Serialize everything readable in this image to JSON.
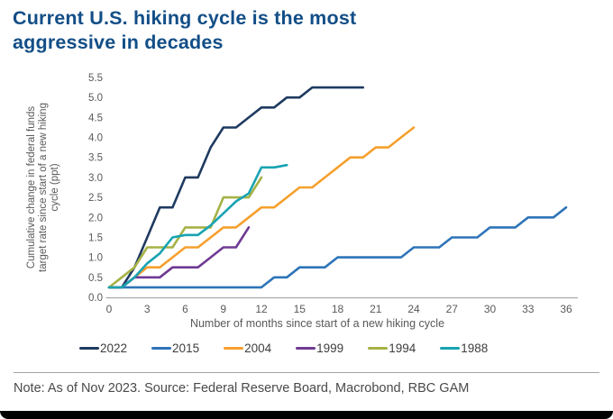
{
  "title": {
    "line1": "Current U.S. hiking cycle is the most",
    "line2": "aggressive in decades",
    "full": "Current U.S. hiking cycle is the most aggressive in decades",
    "color": "#124e87"
  },
  "note": {
    "text": "Note: As of Nov 2023. Source: Federal Reserve Board, Macrobond, RBC GAM"
  },
  "styles": {
    "axis_line": "#a9a9a9",
    "tick_text": "#595959",
    "axis_title_text": "#595959",
    "legend_text": "#3d3d3d",
    "note_text": "#4a4a4a"
  },
  "chart_data": {
    "type": "line",
    "title": "Current U.S. hiking cycle is the most aggressive in decades",
    "xlabel": "Number of months since start of a new hiking cycle",
    "ylabel": "Cumulative change in federal funds target rate since start of a new hiking cycle (ppt)",
    "ylabel_lines": [
      "Cumulative change in federal funds",
      "target rate since start of a new hiking",
      "cycle (ppt)"
    ],
    "xlim": [
      0,
      36
    ],
    "ylim": [
      0,
      5.5
    ],
    "x_ticks": [
      0,
      3,
      6,
      9,
      12,
      15,
      18,
      21,
      24,
      27,
      30,
      33,
      36
    ],
    "y_ticks": [
      0,
      0.5,
      1,
      1.5,
      2,
      2.5,
      3,
      3.5,
      4,
      4.5,
      5,
      5.5
    ],
    "grid": false,
    "legend_position": "bottom",
    "x_unit": "months since start of hiking cycle, monthly values",
    "series": [
      {
        "name": "2022",
        "color": "#1f3a60",
        "x_start": 0,
        "x_step": 1,
        "values": [
          0.25,
          0.25,
          0.75,
          1.5,
          2.25,
          2.25,
          3.0,
          3.0,
          3.75,
          4.25,
          4.25,
          4.5,
          4.75,
          4.75,
          5.0,
          5.0,
          5.25,
          5.25,
          5.25,
          5.25,
          5.25
        ]
      },
      {
        "name": "2015",
        "color": "#2e74b8",
        "x_start": 0,
        "x_step": 1,
        "values": [
          0.25,
          0.25,
          0.25,
          0.25,
          0.25,
          0.25,
          0.25,
          0.25,
          0.25,
          0.25,
          0.25,
          0.25,
          0.25,
          0.5,
          0.5,
          0.75,
          0.75,
          0.75,
          1.0,
          1.0,
          1.0,
          1.0,
          1.0,
          1.0,
          1.25,
          1.25,
          1.25,
          1.5,
          1.5,
          1.5,
          1.75,
          1.75,
          1.75,
          2.0,
          2.0,
          2.0,
          2.25
        ]
      },
      {
        "name": "2004",
        "color": "#f6a02d",
        "x_start": 0,
        "x_step": 1,
        "values": [
          0.25,
          0.25,
          0.5,
          0.75,
          0.75,
          1.0,
          1.25,
          1.25,
          1.5,
          1.75,
          1.75,
          2.0,
          2.25,
          2.25,
          2.5,
          2.75,
          2.75,
          3.0,
          3.25,
          3.5,
          3.5,
          3.75,
          3.75,
          4.0,
          4.25
        ]
      },
      {
        "name": "1999",
        "color": "#6f3a94",
        "x_start": 0,
        "x_step": 1,
        "values": [
          0.25,
          0.25,
          0.5,
          0.5,
          0.5,
          0.75,
          0.75,
          0.75,
          1.0,
          1.25,
          1.25,
          1.75
        ]
      },
      {
        "name": "1994",
        "color": "#a6b246",
        "x_start": 0,
        "x_step": 1,
        "values": [
          0.25,
          0.5,
          0.75,
          1.25,
          1.25,
          1.25,
          1.75,
          1.75,
          1.75,
          2.5,
          2.5,
          2.5,
          3.0
        ]
      },
      {
        "name": "1988",
        "color": "#18a3b2",
        "x_start": 0,
        "x_step": 1,
        "values": [
          0.25,
          0.25,
          0.5,
          0.85,
          1.1,
          1.5,
          1.56,
          1.56,
          1.8,
          2.1,
          2.4,
          2.6,
          3.25,
          3.25,
          3.31
        ]
      }
    ]
  }
}
